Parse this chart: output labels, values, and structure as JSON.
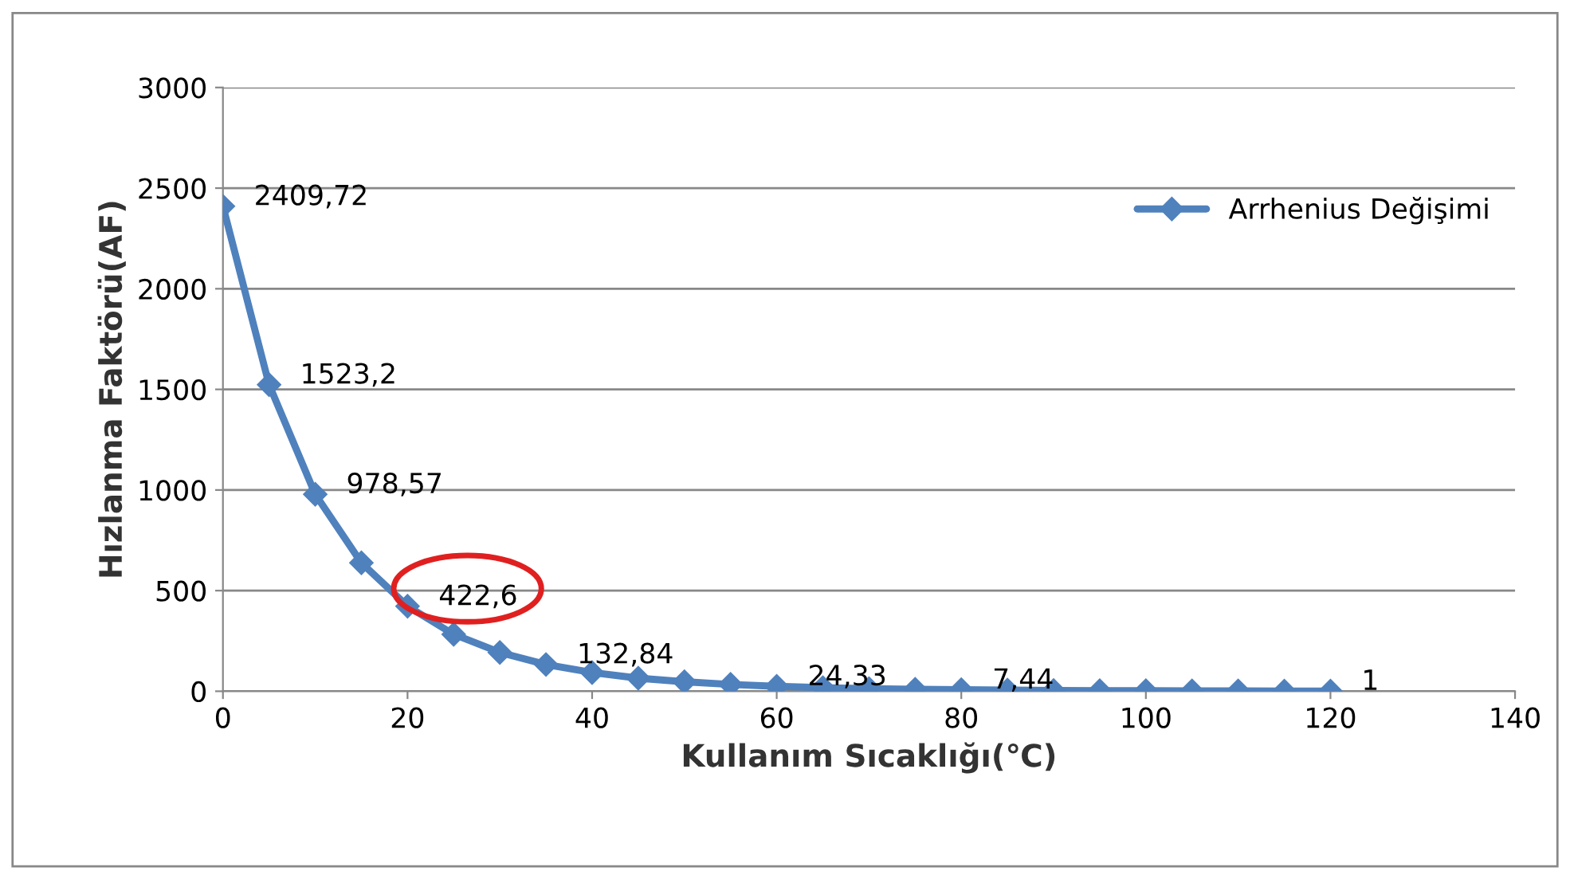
{
  "chart_data": {
    "type": "line",
    "xlabel": "Kullanım Sıcaklığı(℃)",
    "ylabel": "Hızlanma Faktörü(AF)",
    "x": [
      0,
      5,
      10,
      15,
      20,
      25,
      30,
      35,
      40,
      45,
      50,
      55,
      60,
      65,
      70,
      75,
      80,
      85,
      90,
      95,
      100,
      105,
      110,
      115,
      120
    ],
    "series": [
      {
        "name": "Arrhenius Değişimi",
        "color": "#4f81bd",
        "values": [
          2409.72,
          1523.2,
          978.57,
          638,
          422.6,
          283,
          193,
          132.84,
          93,
          65,
          47,
          34,
          24.33,
          18,
          13,
          10,
          7.44,
          6,
          4,
          3,
          3,
          2,
          2,
          1,
          1
        ],
        "value_labels": [
          "2409,72",
          "1523,2",
          "978,57",
          null,
          "422,6",
          null,
          null,
          "132,84",
          null,
          null,
          null,
          null,
          "24,33",
          null,
          null,
          null,
          "7,44",
          null,
          null,
          null,
          null,
          null,
          null,
          null,
          "1"
        ]
      }
    ],
    "xlim": [
      0,
      140
    ],
    "xticks": [
      0,
      20,
      40,
      60,
      80,
      100,
      120,
      140
    ],
    "ylim": [
      0,
      3000
    ],
    "yticks": [
      0,
      500,
      1000,
      1500,
      2000,
      2500,
      3000
    ],
    "grid": "y",
    "legend": "top right",
    "marker": "diamond",
    "line_style": "solid"
  }
}
